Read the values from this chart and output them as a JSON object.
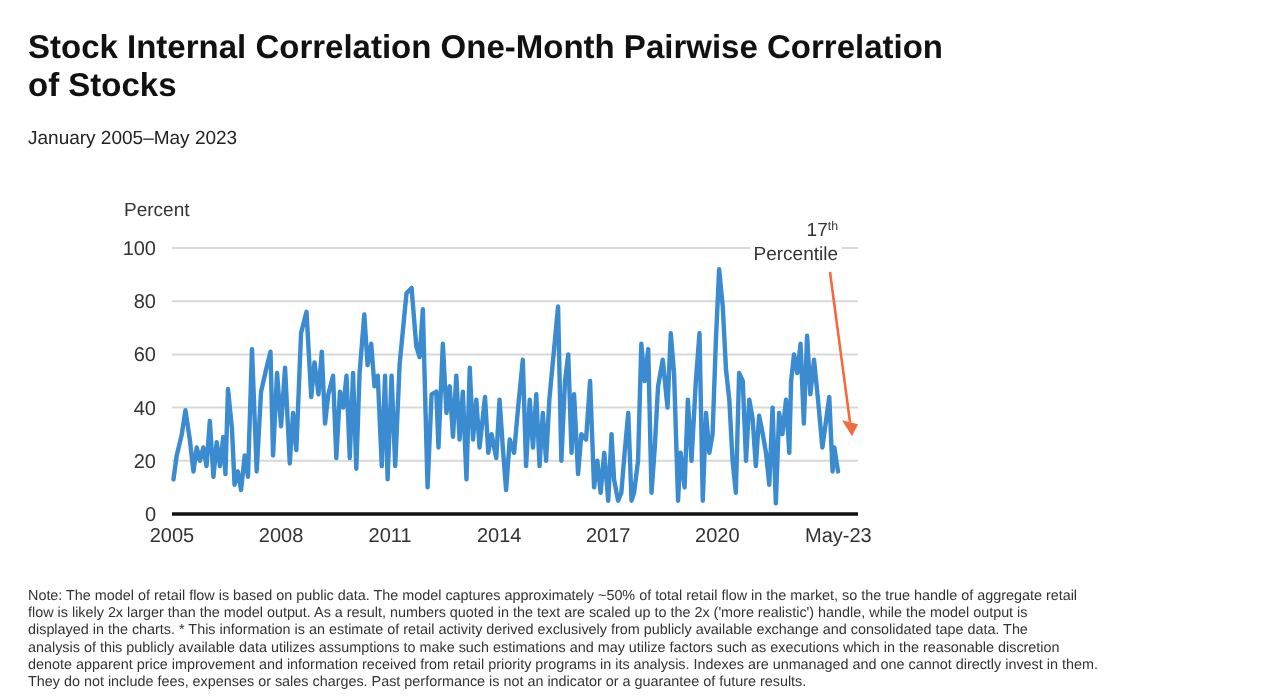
{
  "chart_data": {
    "type": "line",
    "title": "Stock Internal Correlation One-Month Pairwise Correlation of Stocks",
    "subtitle": "January 2005–May 2023",
    "ylabel": "Percent",
    "x": [
      2005.04,
      2005.13,
      2005.27,
      2005.37,
      2005.49,
      2005.59,
      2005.68,
      2005.77,
      2005.86,
      2005.95,
      2006.04,
      2006.14,
      2006.23,
      2006.32,
      2006.41,
      2006.47,
      2006.54,
      2006.65,
      2006.72,
      2006.81,
      2006.9,
      2007.0,
      2007.09,
      2007.2,
      2007.33,
      2007.45,
      2007.6,
      2007.71,
      2007.78,
      2007.89,
      2008.0,
      2008.11,
      2008.24,
      2008.33,
      2008.42,
      2008.55,
      2008.7,
      2008.83,
      2008.92,
      2009.03,
      2009.12,
      2009.21,
      2009.3,
      2009.43,
      2009.52,
      2009.62,
      2009.71,
      2009.8,
      2009.89,
      2009.98,
      2010.07,
      2010.16,
      2010.29,
      2010.38,
      2010.48,
      2010.57,
      2010.66,
      2010.77,
      2010.86,
      2010.93,
      2011.04,
      2011.14,
      2011.26,
      2011.45,
      2011.59,
      2011.72,
      2011.81,
      2011.9,
      2012.03,
      2012.14,
      2012.27,
      2012.33,
      2012.45,
      2012.55,
      2012.64,
      2012.73,
      2012.82,
      2012.91,
      2013.0,
      2013.1,
      2013.19,
      2013.28,
      2013.37,
      2013.46,
      2013.61,
      2013.7,
      2013.79,
      2013.92,
      2014.01,
      2014.1,
      2014.19,
      2014.29,
      2014.41,
      2014.52,
      2014.65,
      2014.74,
      2014.84,
      2014.93,
      2015.02,
      2015.11,
      2015.2,
      2015.29,
      2015.38,
      2015.51,
      2015.62,
      2015.71,
      2015.81,
      2015.9,
      2015.99,
      2016.06,
      2016.17,
      2016.26,
      2016.39,
      2016.5,
      2016.61,
      2016.7,
      2016.79,
      2016.89,
      2017.0,
      2017.09,
      2017.16,
      2017.27,
      2017.36,
      2017.45,
      2017.55,
      2017.64,
      2017.71,
      2017.82,
      2017.91,
      2018.0,
      2018.1,
      2018.19,
      2018.28,
      2018.37,
      2018.5,
      2018.63,
      2018.72,
      2018.81,
      2018.92,
      2018.99,
      2019.1,
      2019.19,
      2019.29,
      2019.41,
      2019.51,
      2019.6,
      2019.69,
      2019.78,
      2019.87,
      2019.96,
      2020.05,
      2020.15,
      2020.24,
      2020.33,
      2020.42,
      2020.51,
      2020.6,
      2020.7,
      2020.79,
      2020.88,
      2020.97,
      2021.06,
      2021.15,
      2021.25,
      2021.34,
      2021.43,
      2021.52,
      2021.61,
      2021.7,
      2021.79,
      2021.89,
      2021.98,
      2022.03,
      2022.11,
      2022.2,
      2022.29,
      2022.38,
      2022.47,
      2022.56,
      2022.66,
      2022.77,
      2022.89,
      2022.99,
      2023.08,
      2023.17,
      2023.22,
      2023.32
    ],
    "series": [
      {
        "color": "#3a8bd0",
        "values": [
          13,
          22,
          30,
          39,
          28,
          16,
          25,
          20,
          25,
          18,
          35,
          14,
          27,
          18,
          29,
          15,
          47,
          32,
          11,
          16,
          9,
          22,
          14,
          62,
          16,
          46,
          55,
          61,
          22,
          53,
          33,
          55,
          19,
          38,
          24,
          68,
          76,
          44,
          57,
          45,
          61,
          34,
          45,
          52,
          21,
          46,
          40,
          52,
          21,
          53,
          17,
          53,
          75,
          56,
          64,
          48,
          52,
          18,
          52,
          13,
          52,
          18,
          56,
          83,
          85,
          63,
          59,
          77,
          10,
          45,
          46,
          25,
          64,
          38,
          48,
          29,
          52,
          28,
          46,
          13,
          55,
          28,
          43,
          25,
          44,
          23,
          30,
          21,
          43,
          25,
          9,
          28,
          23,
          40,
          58,
          18,
          43,
          25,
          45,
          18,
          38,
          20,
          43,
          62,
          78,
          20,
          50,
          60,
          23,
          45,
          15,
          30,
          28,
          50,
          10,
          20,
          8,
          23,
          5,
          30,
          13,
          5,
          8,
          23,
          38,
          5,
          8,
          20,
          64,
          50,
          62,
          8,
          25,
          48,
          58,
          40,
          68,
          53,
          5,
          23,
          10,
          43,
          20,
          50,
          68,
          5,
          38,
          23,
          30,
          65,
          92,
          78,
          54,
          43,
          20,
          8,
          53,
          50,
          20,
          43,
          36,
          18,
          37,
          30,
          23,
          11,
          40,
          4,
          38,
          30,
          43,
          23,
          50,
          60,
          53,
          64,
          34,
          67,
          45,
          58,
          43,
          25,
          35,
          44,
          16,
          25,
          16
        ]
      }
    ],
    "xlim": [
      2005,
      2023.87
    ],
    "xticks": [
      2005,
      2008,
      2011,
      2014,
      2017,
      2020,
      {
        "value": 2023.33,
        "label": "May-23"
      }
    ],
    "ylim": [
      0,
      100
    ],
    "yticks": [
      0,
      20,
      40,
      60,
      80,
      100
    ],
    "grid": "y",
    "marker": "none",
    "line_style": "solid",
    "annotations": [
      "17$^{th}$ Percentile",
      "Note: The model of retail flow is based on public data. The model captures approximately ~50% of total retail flow in the market, so the true handle of aggregate retail flow is likely 2x larger than the model output. As a result, numbers quoted in the text are scaled up to the 2x ('more realistic') handle, while the model output is displayed in the charts. * This information is an estimate of retail activity derived exclusively from publicly available exchange and consolidated tape data. The analysis of this publicly available data utilizes assumptions to make such estimations and may utilize factors such as executions which in the reasonable discretion denote apparent price improvement and information received from retail priority programs in its analysis. Indexes are unmanaged and one cannot directly invest in them. They do not include fees, expenses or sales charges. Past performance is not an indicator or a guarantee of future results."
    ]
  }
}
